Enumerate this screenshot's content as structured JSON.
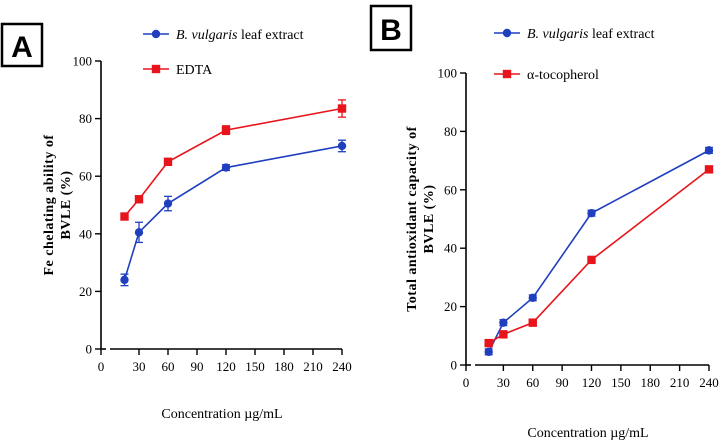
{
  "chart_data": [
    {
      "panel_label": "A",
      "type": "line",
      "x": [
        15,
        30,
        60,
        120,
        240
      ],
      "xlabel": "Concentration µg/mL",
      "xticks": [
        "0",
        "30",
        "60",
        "90",
        "120",
        "150",
        "180",
        "210",
        "240"
      ],
      "xtick_values": [
        0,
        30,
        60,
        90,
        120,
        150,
        180,
        210,
        240
      ],
      "ylabel_lines": [
        "Fe chelating ability of",
        "BVLE (%)"
      ],
      "ylim": [
        0,
        100
      ],
      "yticks": [
        0,
        20,
        40,
        60,
        80,
        100
      ],
      "legend_position": "top",
      "series": [
        {
          "name_italic": "B. vulgaris",
          "name_rest": " leaf extract",
          "color": "#1f3fbf",
          "marker": "circle",
          "values": [
            24,
            40.5,
            50.5,
            63,
            70.5
          ],
          "errors": [
            2,
            3.5,
            2.5,
            1,
            2
          ]
        },
        {
          "name_italic": "",
          "name_rest": "EDTA",
          "color": "#e8141c",
          "marker": "square",
          "values": [
            46,
            52,
            65,
            76,
            83.5
          ],
          "errors": [
            1,
            1,
            1,
            1.5,
            3
          ]
        }
      ]
    },
    {
      "panel_label": "B",
      "type": "line",
      "x": [
        15,
        30,
        60,
        120,
        240
      ],
      "xlabel": "Concentration µg/mL",
      "xticks": [
        "0",
        "30",
        "60",
        "90",
        "120",
        "150",
        "180",
        "210",
        "240"
      ],
      "xtick_values": [
        0,
        30,
        60,
        90,
        120,
        150,
        180,
        210,
        240
      ],
      "ylabel_lines": [
        "Total antioxidant capacity of",
        "BVLE (%)"
      ],
      "ylim": [
        0,
        100
      ],
      "yticks": [
        0,
        20,
        40,
        60,
        80,
        100
      ],
      "legend_position": "top",
      "series": [
        {
          "name_italic": "B. vulgaris",
          "name_rest": " leaf extract",
          "color": "#1f3fbf",
          "marker": "circle",
          "values": [
            4.5,
            14.5,
            23,
            52,
            73.5
          ],
          "errors": [
            1,
            1,
            1,
            1,
            1
          ]
        },
        {
          "name_italic": "",
          "name_rest": "α-tocopherol",
          "color": "#e8141c",
          "marker": "square",
          "values": [
            7.5,
            10.5,
            14.5,
            36,
            67
          ],
          "errors": [
            1,
            1,
            1,
            1,
            1
          ]
        }
      ]
    }
  ]
}
